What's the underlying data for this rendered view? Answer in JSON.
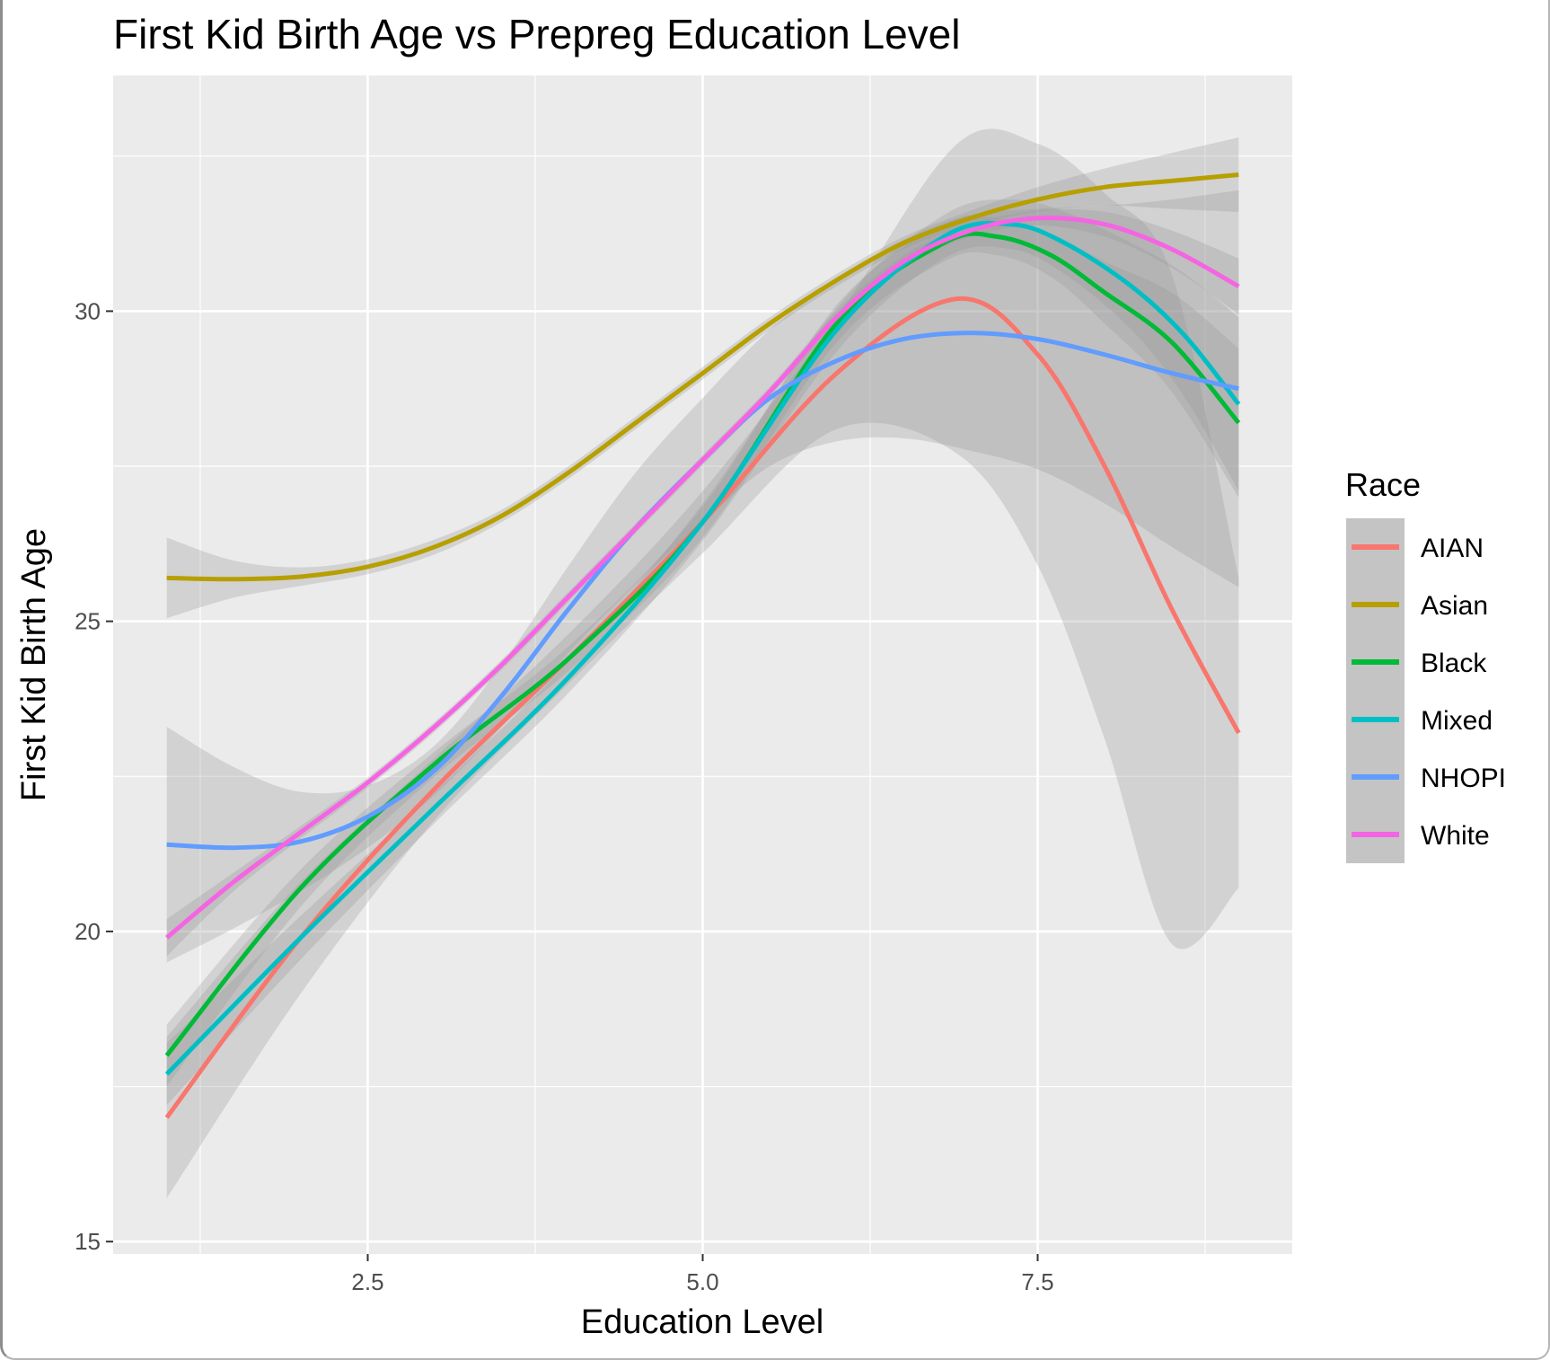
{
  "chart_data": {
    "type": "line",
    "title": "First Kid Birth Age vs Prepreg Education Level",
    "xlabel": "Education Level",
    "ylabel": "First Kid Birth Age",
    "xlim": [
      0.6,
      9.4
    ],
    "ylim": [
      14.8,
      33.8
    ],
    "x_ticks": [
      2.5,
      5.0,
      7.5
    ],
    "x_tick_labels": [
      "2.5",
      "5.0",
      "7.5"
    ],
    "y_ticks": [
      15,
      20,
      25,
      30
    ],
    "y_tick_labels": [
      "15",
      "20",
      "25",
      "30"
    ],
    "grid": true,
    "legend": {
      "title": "Race",
      "position": "right"
    },
    "series": [
      {
        "name": "AIAN",
        "color": "#F8766D",
        "x": [
          1,
          2,
          3,
          4,
          5,
          6,
          6.9,
          7.5,
          8,
          8.5,
          9
        ],
        "y": [
          17.0,
          19.9,
          22.3,
          24.4,
          26.6,
          29.0,
          30.2,
          29.3,
          27.5,
          25.2,
          23.2
        ],
        "band_halfwidth": [
          1.3,
          0.9,
          0.5,
          0.4,
          0.5,
          0.9,
          2.5,
          3.4,
          4.4,
          5.4,
          2.5
        ]
      },
      {
        "name": "Asian",
        "color": "#B79F00",
        "x": [
          1,
          1.5,
          2,
          2.5,
          3,
          3.5,
          4,
          4.5,
          5,
          5.5,
          6,
          6.5,
          7,
          7.5,
          8,
          8.5,
          9
        ],
        "y": [
          25.7,
          25.68,
          25.72,
          25.88,
          26.2,
          26.7,
          27.4,
          28.2,
          29.0,
          29.8,
          30.5,
          31.1,
          31.5,
          31.8,
          32.0,
          32.1,
          32.2
        ],
        "band_halfwidth": [
          0.65,
          0.3,
          0.15,
          0.12,
          0.12,
          0.1,
          0.1,
          0.1,
          0.1,
          0.1,
          0.1,
          0.1,
          0.12,
          0.2,
          0.3,
          0.45,
          0.6
        ]
      },
      {
        "name": "Black",
        "color": "#00BA38",
        "x": [
          1,
          2,
          3,
          4,
          5,
          6,
          6.8,
          7.2,
          7.6,
          8,
          8.5,
          9
        ],
        "y": [
          18.0,
          20.7,
          22.7,
          24.4,
          26.6,
          29.8,
          31.1,
          31.2,
          30.9,
          30.3,
          29.5,
          28.2
        ],
        "band_halfwidth": [
          0.5,
          0.3,
          0.2,
          0.2,
          0.25,
          0.3,
          0.3,
          0.3,
          0.35,
          0.5,
          0.8,
          1.2
        ]
      },
      {
        "name": "Mixed",
        "color": "#00BFC4",
        "x": [
          1,
          2,
          3,
          4,
          5,
          6,
          6.8,
          7.3,
          7.7,
          8.2,
          8.6,
          9
        ],
        "y": [
          17.7,
          19.9,
          22.0,
          24.1,
          26.6,
          29.7,
          31.2,
          31.4,
          31.1,
          30.4,
          29.6,
          28.5
        ],
        "band_halfwidth": [
          0.5,
          0.35,
          0.25,
          0.25,
          0.3,
          0.35,
          0.35,
          0.4,
          0.5,
          0.7,
          1.0,
          1.4
        ]
      },
      {
        "name": "NHOPI",
        "color": "#619CFF",
        "x": [
          1,
          1.5,
          2,
          2.5,
          3,
          3.5,
          4,
          4.5,
          5,
          5.5,
          6,
          6.5,
          7,
          7.5,
          8,
          8.5,
          9
        ],
        "y": [
          21.4,
          21.35,
          21.45,
          21.85,
          22.6,
          23.8,
          25.2,
          26.5,
          27.6,
          28.6,
          29.2,
          29.55,
          29.65,
          29.55,
          29.3,
          29.0,
          28.75
        ],
        "band_halfwidth": [
          1.9,
          1.3,
          0.8,
          0.5,
          0.4,
          0.5,
          0.7,
          0.9,
          1.0,
          1.1,
          1.3,
          1.6,
          1.9,
          2.1,
          2.4,
          2.8,
          3.2
        ]
      },
      {
        "name": "White",
        "color": "#F564E3",
        "x": [
          1,
          1.5,
          2,
          2.5,
          3,
          3.5,
          4,
          4.5,
          5,
          5.5,
          6,
          6.5,
          7,
          7.5,
          8,
          8.5,
          9
        ],
        "y": [
          19.9,
          20.8,
          21.6,
          22.4,
          23.3,
          24.3,
          25.4,
          26.5,
          27.6,
          28.7,
          29.9,
          30.8,
          31.3,
          31.5,
          31.4,
          31.0,
          30.4
        ],
        "band_halfwidth": [
          0.3,
          0.15,
          0.1,
          0.08,
          0.08,
          0.08,
          0.08,
          0.08,
          0.08,
          0.08,
          0.1,
          0.1,
          0.1,
          0.12,
          0.2,
          0.3,
          0.45
        ]
      }
    ]
  }
}
